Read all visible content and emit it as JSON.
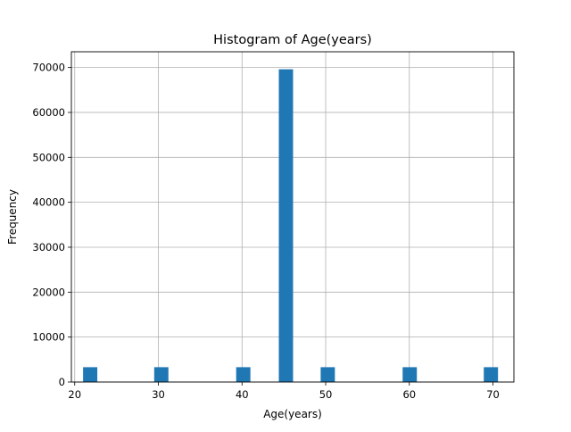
{
  "chart_data": {
    "type": "bar",
    "title": "Histogram of Age(years)",
    "xlabel": "Age(years)",
    "ylabel": "Frequency",
    "xlim": [
      19.6,
      72.5
    ],
    "ylim": [
      0,
      73500
    ],
    "xticks": [
      20,
      30,
      40,
      50,
      60,
      70
    ],
    "yticks": [
      0,
      10000,
      20000,
      30000,
      40000,
      50000,
      60000,
      70000
    ],
    "grid": true,
    "bar_color": "#1f77b4",
    "bin_width": 1.7,
    "bins": [
      {
        "x0": 21.0,
        "x1": 22.7,
        "value": 3300
      },
      {
        "x0": 29.5,
        "x1": 31.2,
        "value": 3300
      },
      {
        "x0": 39.3,
        "x1": 41.0,
        "value": 3300
      },
      {
        "x0": 44.4,
        "x1": 46.1,
        "value": 69600
      },
      {
        "x0": 49.4,
        "x1": 51.1,
        "value": 3300
      },
      {
        "x0": 59.2,
        "x1": 60.9,
        "value": 3300
      },
      {
        "x0": 68.9,
        "x1": 70.6,
        "value": 3300
      }
    ]
  }
}
